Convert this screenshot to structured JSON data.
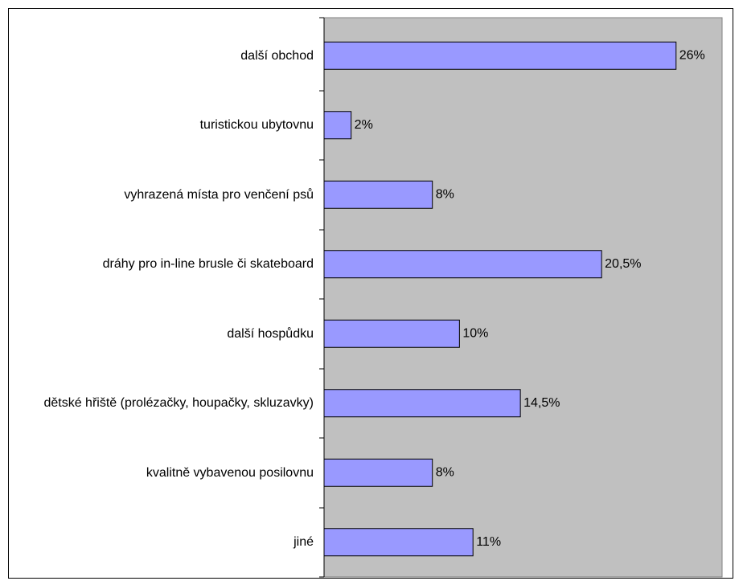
{
  "chart_data": {
    "type": "barh",
    "categories": [
      "další obchod",
      "turistickou ubytovnu",
      "vyhrazená místa pro venčení psů",
      "dráhy pro in-line brusle či skateboard",
      "další hospůdku",
      "dětské hřiště (prolézačky, houpačky, skluzavky)",
      "kvalitně vybavenou posilovnu",
      "jiné"
    ],
    "values": [
      26,
      2,
      8,
      20.5,
      10,
      14.5,
      8,
      11
    ],
    "value_labels": [
      "26%",
      "2%",
      "8%",
      "20,5%",
      "10%",
      "14,5%",
      "8%",
      "11%"
    ],
    "color": "#9999ff",
    "plot_background": "#c0c0c0",
    "xlim": [
      0,
      29.4
    ]
  }
}
